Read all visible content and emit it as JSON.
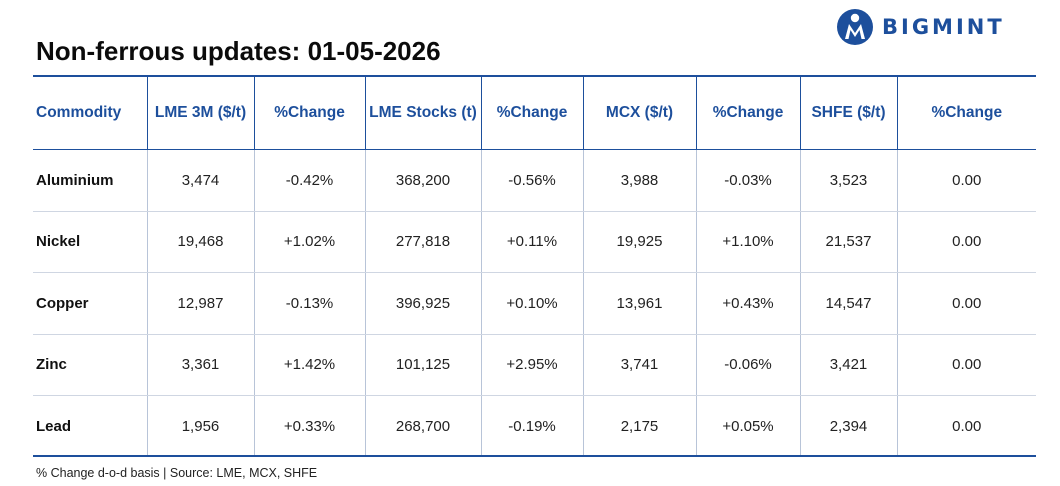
{
  "brand": {
    "name": "BIGMINT",
    "accent": "#1d4f9c",
    "icon": "bigmint-logo-icon"
  },
  "title": "Non-ferrous updates: 01-05-2026",
  "table": {
    "headers": [
      "Commodity",
      "LME 3M ($/t)",
      "%Change",
      "LME Stocks (t)",
      "%Change",
      "MCX ($/t)",
      "%Change",
      "SHFE ($/t)",
      "%Change"
    ],
    "rows": [
      [
        "Aluminium",
        "3,474",
        "-0.42%",
        "368,200",
        "-0.56%",
        "3,988",
        "-0.03%",
        "3,523",
        "0.00"
      ],
      [
        "Nickel",
        "19,468",
        "+1.02%",
        "277,818",
        "+0.11%",
        "19,925",
        "+1.10%",
        "21,537",
        "0.00"
      ],
      [
        "Copper",
        "12,987",
        "-0.13%",
        "396,925",
        "+0.10%",
        "13,961",
        "+0.43%",
        "14,547",
        "0.00"
      ],
      [
        "Zinc",
        "3,361",
        "+1.42%",
        "101,125",
        "+2.95%",
        "3,741",
        "-0.06%",
        "3,421",
        "0.00"
      ],
      [
        "Lead",
        "1,956",
        "+0.33%",
        "268,700",
        "-0.19%",
        "2,175",
        "+0.05%",
        "2,394",
        "0.00"
      ]
    ],
    "colors": {
      "positive": "#1f9d3a",
      "negative": "#e0262b",
      "header": "#1d4f9c"
    }
  },
  "footnote": "% Change d-o-d basis | Source: LME, MCX, SHFE"
}
